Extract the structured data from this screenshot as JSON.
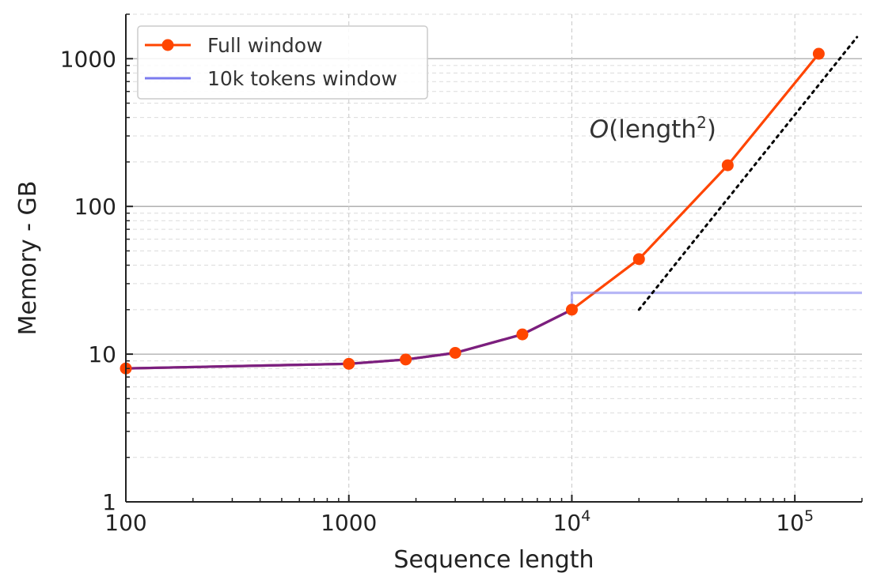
{
  "chart_data": {
    "type": "line",
    "xscale": "log",
    "yscale": "log",
    "xlim": [
      100,
      200000
    ],
    "ylim": [
      1,
      2000
    ],
    "xlabel": "Sequence length",
    "ylabel": "Memory - GB",
    "x_ticks": [
      {
        "value": 100,
        "label": "100"
      },
      {
        "value": 1000,
        "label": "1000"
      },
      {
        "value": 10000,
        "label": "10",
        "sup": "4"
      },
      {
        "value": 100000,
        "label": "10",
        "sup": "5"
      }
    ],
    "y_ticks": [
      {
        "value": 1,
        "label": "1"
      },
      {
        "value": 10,
        "label": "10"
      },
      {
        "value": 100,
        "label": "100"
      },
      {
        "value": 1000,
        "label": "1000"
      }
    ],
    "grid": true,
    "legend_position": "top-left",
    "series": [
      {
        "name": "Full window",
        "color": "#ff4500",
        "marker": "circle",
        "x": [
          100,
          1000,
          1800,
          3000,
          6000,
          10000,
          20000,
          50000,
          128000
        ],
        "y": [
          8.0,
          8.6,
          9.2,
          10.2,
          13.6,
          20.0,
          44.0,
          190.0,
          1080.0
        ]
      },
      {
        "name": "10k tokens window",
        "color": "#7b7bef",
        "marker": "none",
        "x": [
          100,
          1000,
          1800,
          3000,
          6000,
          10000,
          10000,
          200000
        ],
        "y": [
          8.0,
          8.6,
          9.2,
          10.2,
          13.6,
          20.0,
          26.0,
          26.0
        ]
      }
    ],
    "overlap_color": "#7a1f80",
    "reference_line": {
      "style": "dotted",
      "color": "#000000",
      "x": [
        20000,
        190000
      ],
      "y": [
        20.0,
        1400.0
      ]
    },
    "annotation": {
      "italic": "O",
      "text_before": "(length",
      "sup": "2",
      "text_after": ")",
      "at": [
        12000,
        340
      ]
    }
  }
}
